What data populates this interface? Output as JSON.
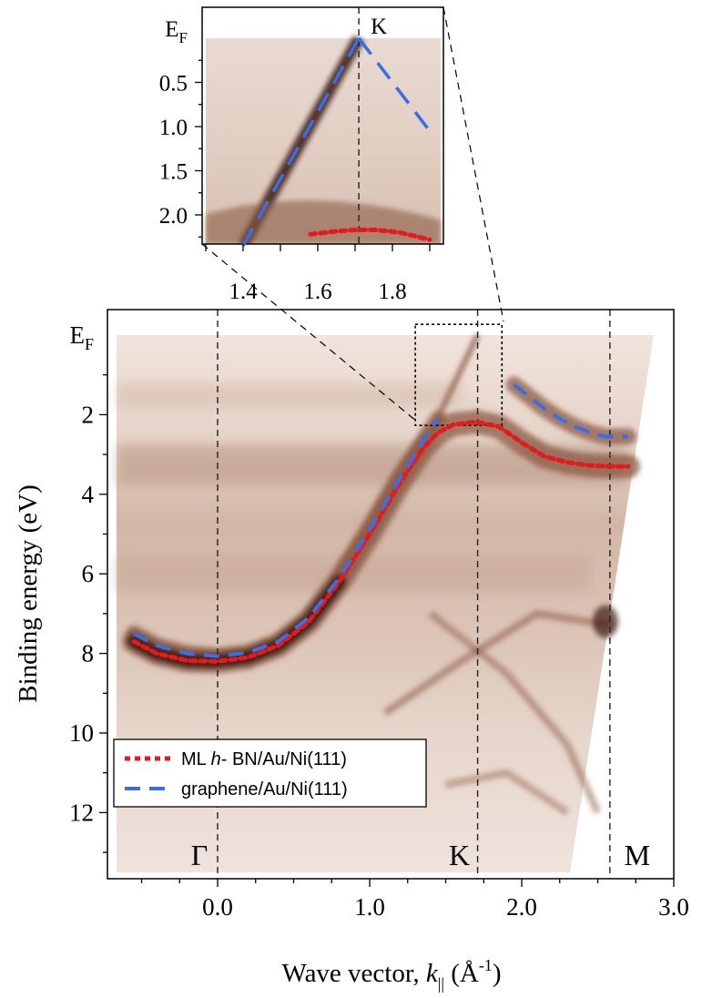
{
  "chart_data": [
    {
      "type": "heatmap",
      "name": "main-band-structure",
      "xlabel": "Wave vector, k|| (Å-1)",
      "ylabel": "Binding energy (eV)",
      "x_range": [
        -0.75,
        3.0
      ],
      "y_range": [
        0,
        13.5
      ],
      "x_ticks": [
        0.0,
        1.0,
        2.0,
        3.0
      ],
      "x_tick_labels": [
        "0.0",
        "1.0",
        "2.0",
        "3.0"
      ],
      "y_ticks": [
        0,
        2,
        4,
        6,
        8,
        10,
        12
      ],
      "y_tick_labels": [
        "EF",
        "2",
        "4",
        "6",
        "8",
        "10",
        "12"
      ],
      "symmetry_points": [
        {
          "label": "Γ",
          "k": 0.0
        },
        {
          "label": "K",
          "k": 1.71
        },
        {
          "label": "M",
          "k": 2.58
        }
      ],
      "zoom_box": {
        "k": [
          1.3,
          1.87
        ],
        "E": [
          -0.27,
          2.27
        ]
      },
      "series": [
        {
          "name": "ML h- BN/Au/Ni(111)",
          "style": "dotted",
          "color": "#e41a1c",
          "points": [
            [
              -0.55,
              7.7
            ],
            [
              -0.4,
              8.0
            ],
            [
              -0.2,
              8.18
            ],
            [
              0.0,
              8.2
            ],
            [
              0.2,
              8.1
            ],
            [
              0.4,
              7.8
            ],
            [
              0.6,
              7.2
            ],
            [
              0.8,
              6.2
            ],
            [
              1.0,
              5.0
            ],
            [
              1.2,
              3.7
            ],
            [
              1.35,
              2.85
            ],
            [
              1.45,
              2.45
            ],
            [
              1.55,
              2.25
            ],
            [
              1.7,
              2.18
            ],
            [
              1.85,
              2.3
            ],
            [
              2.0,
              2.7
            ],
            [
              2.15,
              3.05
            ],
            [
              2.3,
              3.2
            ],
            [
              2.45,
              3.28
            ],
            [
              2.6,
              3.3
            ],
            [
              2.7,
              3.3
            ]
          ]
        },
        {
          "name": "graphene/Au/Ni(111)",
          "style": "dashed",
          "color": "#3a6ee8",
          "points": [
            [
              -0.55,
              7.5
            ],
            [
              -0.4,
              7.8
            ],
            [
              -0.2,
              8.0
            ],
            [
              0.0,
              8.07
            ],
            [
              0.2,
              7.98
            ],
            [
              0.4,
              7.7
            ],
            [
              0.6,
              7.1
            ],
            [
              0.8,
              6.1
            ],
            [
              1.0,
              4.9
            ],
            [
              1.2,
              3.6
            ],
            [
              1.3,
              3.0
            ],
            [
              1.38,
              2.5
            ],
            [
              1.45,
              2.1
            ]
          ]
        },
        {
          "name": "graphene-upper-branch",
          "style": "dashed",
          "color": "#3a6ee8",
          "points": [
            [
              1.95,
              1.25
            ],
            [
              2.05,
              1.55
            ],
            [
              2.15,
              1.85
            ],
            [
              2.25,
              2.1
            ],
            [
              2.35,
              2.3
            ],
            [
              2.45,
              2.45
            ],
            [
              2.55,
              2.55
            ],
            [
              2.65,
              2.55
            ],
            [
              2.7,
              2.55
            ]
          ]
        }
      ]
    },
    {
      "type": "heatmap",
      "name": "inset-zoom-near-K",
      "x_range": [
        1.3,
        1.9
      ],
      "y_range": [
        -0.27,
        2.35
      ],
      "x_ticks": [
        1.4,
        1.6,
        1.8
      ],
      "x_tick_labels": [
        "1.4",
        "1.6",
        "1.8"
      ],
      "y_ticks": [
        0,
        0.5,
        1.0,
        1.5,
        2.0
      ],
      "y_tick_labels": [
        "EF",
        "0.5",
        "1.0",
        "1.5",
        "2.0"
      ],
      "symmetry_points": [
        {
          "label": "K",
          "k": 1.71
        }
      ],
      "series": [
        {
          "name": "graphene-dirac-left",
          "style": "dashed",
          "color": "#3a6ee8",
          "points": [
            [
              1.4,
              2.35
            ],
            [
              1.71,
              0.0
            ]
          ]
        },
        {
          "name": "graphene-dirac-right",
          "style": "dashed",
          "color": "#3a6ee8",
          "points": [
            [
              1.71,
              0.0
            ],
            [
              1.9,
              1.05
            ]
          ]
        },
        {
          "name": "hbn-top",
          "style": "dotted",
          "color": "#e41a1c",
          "points": [
            [
              1.58,
              2.22
            ],
            [
              1.64,
              2.19
            ],
            [
              1.7,
              2.17
            ],
            [
              1.76,
              2.17
            ],
            [
              1.82,
              2.2
            ],
            [
              1.88,
              2.26
            ],
            [
              1.9,
              2.28
            ]
          ]
        }
      ]
    }
  ],
  "legend": {
    "entries": [
      {
        "prefix": "ML ",
        "italic": "h",
        "suffix": "- BN/Au/Ni(111)"
      },
      {
        "prefix": "graphene/Au/Ni(111)",
        "italic": "",
        "suffix": ""
      }
    ]
  },
  "axes_text": {
    "y_title": "Binding energy (eV)",
    "x_title_prefix": "Wave vector, ",
    "x_title_k": "k",
    "x_title_sub": "||",
    "x_title_unit_open": " (Å",
    "x_title_unit_sup": "-1",
    "x_title_unit_close": ")",
    "ef_main": "E",
    "ef_sub": "F"
  },
  "colors": {
    "band_dark": "#3a1a0e",
    "band_mid": "#8b5a44",
    "band_light": "#e9d8ce",
    "hbn": "#e41a1c",
    "graphene": "#3a6ee8"
  }
}
